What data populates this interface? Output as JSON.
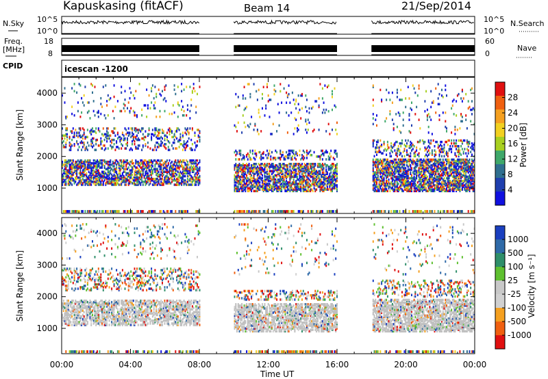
{
  "header": {
    "station": "Kapuskasing (fitACF)",
    "beam": "Beam 14",
    "date": "21/Sep/2014"
  },
  "top_strips": {
    "nsky_label": "N.Sky",
    "nsky_ticks": [
      "10^5",
      "10^0"
    ],
    "nsearch_label": "N.Search",
    "nsearch_ticks": [
      "10^5",
      "10^0"
    ],
    "freq_label": "Freq.",
    "freq_unit": "[MHz]",
    "freq_ticks": [
      "18",
      "8"
    ],
    "nave_label": "Nave",
    "nave_ticks": [
      "60",
      "0"
    ],
    "cpid_label": "CPID",
    "cpid_value": "icescan -1200"
  },
  "colors": {
    "power_scale": [
      "#1010e0",
      "#1f3fae",
      "#2f6f8f",
      "#3fa86a",
      "#a8d020",
      "#f2d020",
      "#f5a020",
      "#f06010",
      "#e01010"
    ],
    "velocity_scale": [
      "#1a3fbf",
      "#2f6aa8",
      "#2f8f6a",
      "#5fc030",
      "#c8c8c8",
      "#d0d0d0",
      "#f5a020",
      "#f06010",
      "#e01010"
    ],
    "ground_scatter": "#c0c0c0"
  },
  "chart_data": [
    {
      "type": "heatmap",
      "title": "",
      "ylabel": "Slant Range [km]",
      "xlabel": "",
      "x_ticks": [
        "00:00",
        "04:00",
        "08:00",
        "12:00",
        "16:00",
        "20:00",
        "00:00"
      ],
      "y_ticks": [
        "1000",
        "2000",
        "3000",
        "4000"
      ],
      "ylim": [
        200,
        4500
      ],
      "xlim_hours": [
        0,
        24
      ],
      "colorbar": {
        "label": "Power [dB]",
        "ticks": [
          "4",
          "8",
          "12",
          "16",
          "20",
          "24",
          "28"
        ]
      },
      "data_gaps_hours": [
        [
          8,
          10
        ],
        [
          16,
          18
        ]
      ]
    },
    {
      "type": "heatmap",
      "title": "",
      "ylabel": "Slant Range [km]",
      "xlabel": "Time UT",
      "x_ticks": [
        "00:00",
        "04:00",
        "08:00",
        "12:00",
        "16:00",
        "20:00",
        "00:00"
      ],
      "y_ticks": [
        "1000",
        "2000",
        "3000",
        "4000"
      ],
      "ylim": [
        200,
        4500
      ],
      "xlim_hours": [
        0,
        24
      ],
      "colorbar": {
        "label": "Velocity [m s⁻¹]",
        "ticks": [
          "1000",
          "500",
          "100",
          "25",
          "-25",
          "-100",
          "-500",
          "-1000"
        ]
      },
      "data_gaps_hours": [
        [
          8,
          10
        ],
        [
          16,
          18
        ]
      ]
    }
  ]
}
